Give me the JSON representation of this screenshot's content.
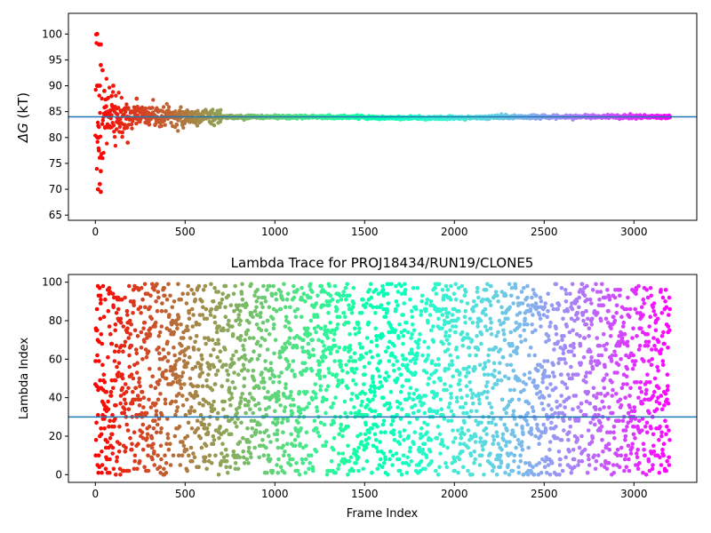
{
  "colors": {
    "hline": "#1f77b4",
    "axes": "#000000",
    "background": "#ffffff",
    "colormap": "rainbow"
  },
  "chart_data": [
    {
      "type": "scatter",
      "title": "",
      "xlabel": "",
      "ylabel": "ΔG (kT)",
      "ylabel_symbol": "ΔG",
      "ylabel_unit": " (kT)",
      "xlim": [
        -150,
        3350
      ],
      "ylim": [
        64,
        104
      ],
      "xticks": [
        0,
        500,
        1000,
        1500,
        2000,
        2500,
        3000
      ],
      "yticks": [
        65,
        70,
        75,
        80,
        85,
        90,
        95,
        100
      ],
      "hline": 84,
      "grid": false,
      "legend": "none",
      "points_sample": [
        [
          10,
          100
        ],
        [
          20,
          98
        ],
        [
          30,
          98
        ],
        [
          10,
          90
        ],
        [
          15,
          90
        ],
        [
          25,
          90
        ],
        [
          12,
          80
        ],
        [
          18,
          80
        ],
        [
          30,
          94
        ],
        [
          40,
          93
        ],
        [
          50,
          89
        ],
        [
          60,
          86
        ],
        [
          70,
          85
        ],
        [
          80,
          85
        ],
        [
          90,
          88
        ],
        [
          100,
          90
        ],
        [
          20,
          77.5
        ],
        [
          30,
          73.5
        ],
        [
          15,
          70
        ],
        [
          25,
          71
        ],
        [
          30,
          69.5
        ],
        [
          55,
          82
        ],
        [
          75,
          84
        ],
        [
          90,
          82
        ],
        [
          120,
          83
        ],
        [
          150,
          81
        ],
        [
          180,
          79
        ],
        [
          200,
          85
        ],
        [
          230,
          87.5
        ],
        [
          260,
          84
        ],
        [
          300,
          82.5
        ],
        [
          350,
          85
        ],
        [
          400,
          85
        ],
        [
          450,
          84
        ],
        [
          500,
          84.5
        ],
        [
          600,
          85
        ],
        [
          700,
          84
        ],
        [
          1000,
          84.3
        ],
        [
          1500,
          83.8
        ],
        [
          1700,
          83.5
        ],
        [
          2000,
          83.7
        ],
        [
          2500,
          84
        ],
        [
          3000,
          84
        ],
        [
          3200,
          84
        ]
      ]
    },
    {
      "type": "scatter",
      "title": "Lambda Trace for PROJ18434/RUN19/CLONE5",
      "xlabel": "Frame Index",
      "ylabel": "Lambda Index",
      "xlim": [
        -150,
        3350
      ],
      "ylim": [
        -4,
        104
      ],
      "xticks": [
        0,
        500,
        1000,
        1500,
        2000,
        2500,
        3000
      ],
      "yticks": [
        0,
        20,
        40,
        60,
        80,
        100
      ],
      "hline": 30,
      "grid": false,
      "legend": "none",
      "frames": [
        0,
        3200
      ],
      "lambda_range": [
        0,
        99
      ]
    }
  ]
}
